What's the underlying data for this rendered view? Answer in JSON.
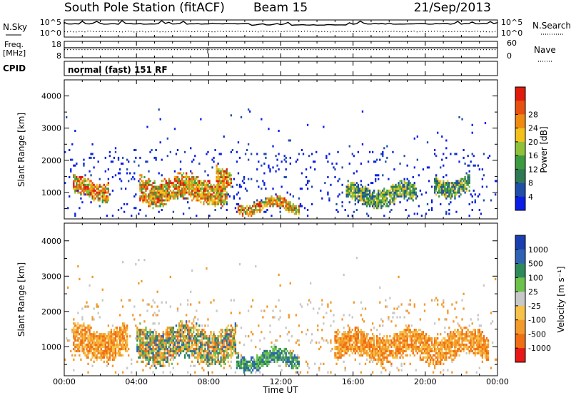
{
  "header": {
    "station": "South Pole Station (fitACF)",
    "beam": "Beam 15",
    "date": "21/Sep/2013"
  },
  "top_panels": {
    "nsky_label": "N.Sky",
    "nsky_top_tick": "10^5",
    "nsky_bottom_tick": "10^0",
    "nsearch_label": "N.Search",
    "nsearch_top_tick": "10^5",
    "nsearch_bottom_tick": "10^0",
    "freq_label_line1": "Freq.",
    "freq_label_line2": "[MHz]",
    "freq_top_tick": "18",
    "freq_bottom_tick": "8",
    "nave_label": "Nave",
    "nave_top_tick": "60",
    "nave_bottom_tick": "0",
    "cpid_label": "CPID",
    "cpid_value": "normal (fast) 151 RF"
  },
  "chart_data": [
    {
      "type": "heatmap",
      "name": "power",
      "ylabel": "Slant Range [km]",
      "yticks": [
        "1000",
        "2000",
        "3000",
        "4000"
      ],
      "ylim": [
        180,
        4500
      ],
      "xlim_hours": [
        0,
        24
      ],
      "colorbar": {
        "label": "Power [dB]",
        "ticks": [
          "4",
          "8",
          "12",
          "16",
          "20",
          "24",
          "28"
        ],
        "colors": [
          "#0a1ee6",
          "#1f4fa8",
          "#2e7a55",
          "#3c9a40",
          "#8fc23a",
          "#f4c11a",
          "#f08a10",
          "#e8500f",
          "#e01a0c"
        ]
      },
      "background_scatter": "sparse blue/green returns 1500–3600 km",
      "bands": [
        {
          "from_h": 0.5,
          "to_h": 2.5,
          "center_km": 1100,
          "halfwidth_km": 250,
          "level": "high"
        },
        {
          "from_h": 4.2,
          "to_h": 9.0,
          "center_km": 1050,
          "halfwidth_km": 350,
          "level": "high"
        },
        {
          "from_h": 8.4,
          "to_h": 9.3,
          "center_km": 1500,
          "halfwidth_km": 250,
          "level": "high"
        },
        {
          "from_h": 9.6,
          "to_h": 13.0,
          "center_km": 550,
          "halfwidth_km": 150,
          "level": "high"
        },
        {
          "from_h": 15.6,
          "to_h": 19.5,
          "center_km": 900,
          "halfwidth_km": 250,
          "level": "medium"
        },
        {
          "from_h": 20.5,
          "to_h": 22.5,
          "center_km": 1200,
          "halfwidth_km": 250,
          "level": "medium"
        }
      ]
    },
    {
      "type": "heatmap",
      "name": "velocity",
      "ylabel": "Slant Range [km]",
      "yticks": [
        "1000",
        "2000",
        "3000",
        "4000"
      ],
      "ylim": [
        180,
        4500
      ],
      "xlim_hours": [
        0,
        24
      ],
      "xlabel": "Time UT",
      "xticks": [
        "00:00",
        "04:00",
        "08:00",
        "12:00",
        "16:00",
        "20:00",
        "00:00"
      ],
      "colorbar": {
        "label": "Velocity [m s⁻¹]",
        "ticks": [
          "1000",
          "500",
          "100",
          "25",
          "-25",
          "-100",
          "-500",
          "-1000"
        ],
        "colors": [
          "#1a3fb0",
          "#2f64b4",
          "#2e8a5a",
          "#6cc24a",
          "#c8c8c8",
          "#f6c24a",
          "#f39a2a",
          "#f06e14",
          "#e81818"
        ]
      },
      "regions": [
        {
          "from_h": 0.5,
          "to_h": 3.5,
          "center_km": 1100,
          "halfwidth_km": 400,
          "sign": "away"
        },
        {
          "from_h": 4.0,
          "to_h": 9.5,
          "center_km": 1050,
          "halfwidth_km": 450,
          "sign": "mixed"
        },
        {
          "from_h": 9.5,
          "to_h": 13.0,
          "center_km": 600,
          "halfwidth_km": 200,
          "sign": "toward"
        },
        {
          "from_h": 15.0,
          "to_h": 23.5,
          "center_km": 1000,
          "halfwidth_km": 350,
          "sign": "away"
        }
      ]
    }
  ],
  "colors": {
    "axis": "#000000",
    "background": "#ffffff"
  }
}
